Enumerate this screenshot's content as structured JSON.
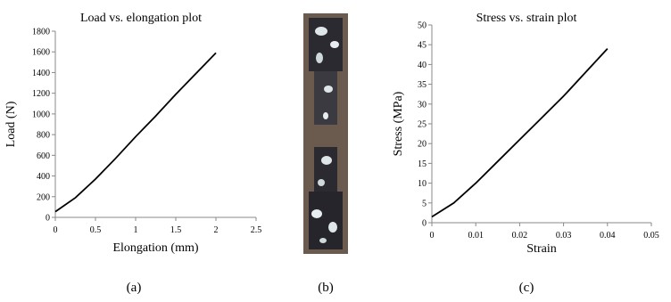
{
  "chart_data": [
    {
      "type": "line",
      "title": "Load vs. elongation plot",
      "x_label": "Elongation (mm)",
      "y_label": "Load (N)",
      "x": [
        0,
        0.25,
        0.5,
        0.75,
        1,
        1.25,
        1.5,
        1.75,
        2
      ],
      "series": [
        {
          "color": "#000000",
          "values": [
            55,
            190,
            370,
            570,
            780,
            980,
            1190,
            1390,
            1590
          ]
        }
      ],
      "xlim": [
        0,
        2.5
      ],
      "xticks": [
        0,
        0.5,
        1,
        1.5,
        2,
        2.5
      ],
      "ylim": [
        0,
        1800
      ],
      "yticks": [
        0,
        200,
        400,
        600,
        800,
        1000,
        1200,
        1400,
        1600,
        1800
      ]
    },
    {
      "type": "line",
      "title": "Stress vs. strain plot",
      "x_label": "Strain",
      "y_label": "Stress (MPa)",
      "x": [
        0,
        0.005,
        0.01,
        0.015,
        0.02,
        0.025,
        0.03,
        0.035,
        0.04
      ],
      "series": [
        {
          "color": "#000000",
          "values": [
            1.5,
            5,
            10,
            15.5,
            21,
            26.5,
            32,
            38,
            44
          ]
        }
      ],
      "xlim": [
        0,
        0.05
      ],
      "xticks": [
        0,
        0.01,
        0.02,
        0.03,
        0.04,
        0.05
      ],
      "ylim": [
        0,
        50
      ],
      "yticks": [
        0,
        5,
        10,
        15,
        20,
        25,
        30,
        35,
        40,
        45,
        50
      ]
    }
  ],
  "captions": [
    "(a)",
    "(b)",
    "(c)"
  ]
}
